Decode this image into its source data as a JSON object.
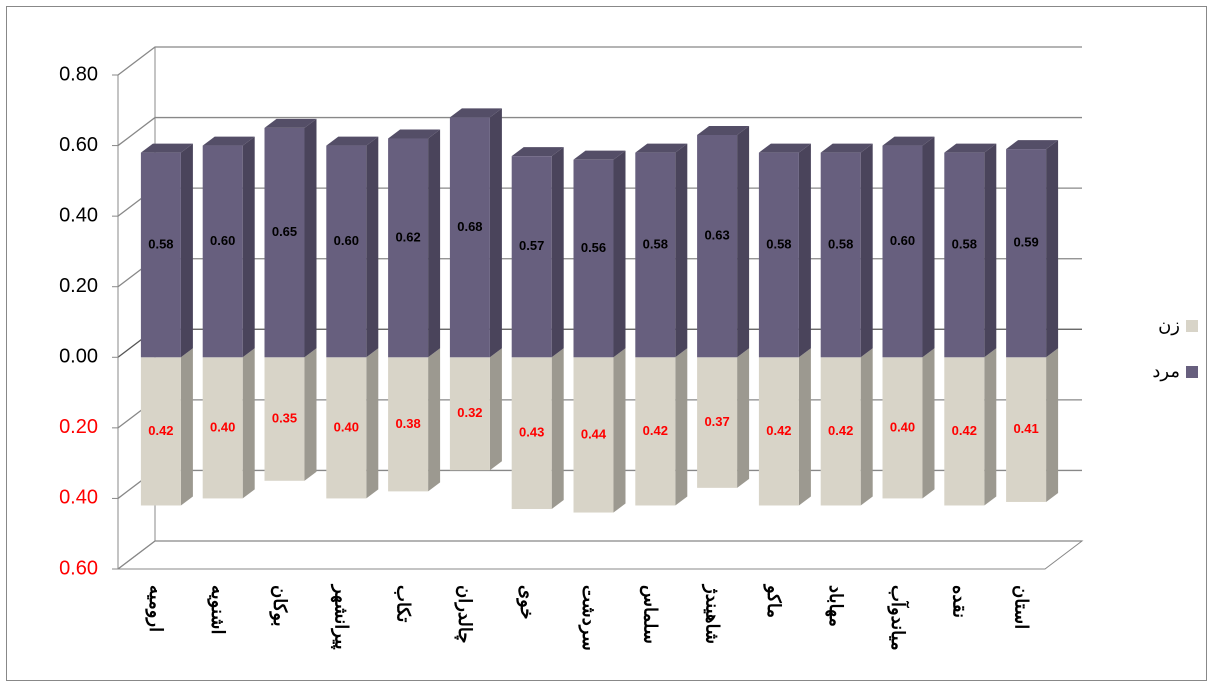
{
  "chart_data": {
    "type": "bar3d-stacked",
    "categories": [
      "ارومیه",
      "اشنویه",
      "بوکان",
      "پیرانشهر",
      "تکاب",
      "چالدران",
      "خوی",
      "سردشت",
      "سلماس",
      "شاهیندژ",
      "ماکو",
      "مهاباد",
      "میاندوآب",
      "نقده",
      "استان"
    ],
    "series": [
      {
        "name": "زن",
        "color": "#d8d4c8",
        "label_color": "#ff0000",
        "values": [
          -0.42,
          -0.4,
          -0.35,
          -0.4,
          -0.38,
          -0.32,
          -0.43,
          -0.44,
          -0.42,
          -0.37,
          -0.42,
          -0.42,
          -0.4,
          -0.42,
          -0.41
        ],
        "value_labels": [
          "0.42",
          "0.40",
          "0.35",
          "0.40",
          "0.38",
          "0.32",
          "0.43",
          "0.44",
          "0.42",
          "0.37",
          "0.42",
          "0.42",
          "0.40",
          "0.42",
          "0.41"
        ]
      },
      {
        "name": "مرد",
        "color": "#675f7e",
        "label_color": "#000000",
        "values": [
          0.58,
          0.6,
          0.65,
          0.6,
          0.62,
          0.68,
          0.57,
          0.56,
          0.58,
          0.63,
          0.58,
          0.58,
          0.6,
          0.58,
          0.59
        ],
        "value_labels": [
          "0.58",
          "0.60",
          "0.65",
          "0.60",
          "0.62",
          "0.68",
          "0.57",
          "0.56",
          "0.58",
          "0.63",
          "0.58",
          "0.58",
          "0.60",
          "0.58",
          "0.59"
        ]
      }
    ],
    "ylim": [
      -0.6,
      0.8
    ],
    "yticks": [
      {
        "value": -0.6,
        "label": "0.60"
      },
      {
        "value": -0.4,
        "label": "0.40"
      },
      {
        "value": -0.2,
        "label": "0.20"
      },
      {
        "value": 0,
        "label": "0.00"
      },
      {
        "value": 0.2,
        "label": "0.20"
      },
      {
        "value": 0.4,
        "label": "0.40"
      },
      {
        "value": 0.6,
        "label": "0.60"
      },
      {
        "value": 0.8,
        "label": "0.80"
      }
    ],
    "negative_tick_color": "#ff0000",
    "grid": true,
    "legend": "right"
  }
}
